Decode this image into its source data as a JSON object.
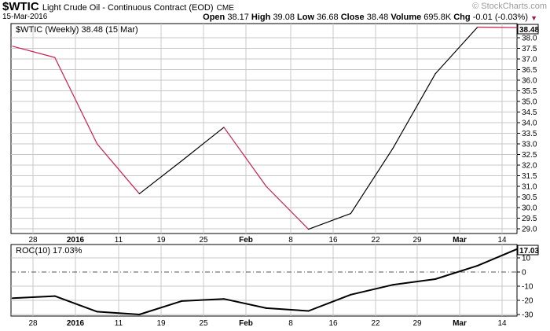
{
  "header": {
    "symbol": "$WTIC",
    "description": "Light Crude Oil - Continuous Contract (EOD)",
    "exchange": "CME",
    "date": "15-Mar-2016",
    "open_label": "Open",
    "open": "38.17",
    "high_label": "High",
    "high": "39.08",
    "low_label": "Low",
    "low": "36.68",
    "close_label": "Close",
    "close": "38.48",
    "volume_label": "Volume",
    "volume": "695.8K",
    "chg_label": "Chg",
    "chg": "-0.01 (-0.03%)",
    "brand": "© StockCharts.com"
  },
  "colors": {
    "up": "#000000",
    "down": "#cc1f4e",
    "grid": "#c8c8c8",
    "zero_line": "#555555"
  },
  "chart_data": [
    {
      "type": "line",
      "title": "$WTIC (Weekly) 38.48 (15 Mar)",
      "last_value_label": "38.48",
      "x_labels": [
        "28",
        "2016",
        "11",
        "19",
        "25",
        "Feb",
        "8",
        "16",
        "22",
        "29",
        "Mar",
        "14"
      ],
      "x_labels_bold": [
        "2016",
        "Feb",
        "Mar"
      ],
      "x": [
        "Dec 21",
        "Dec 28",
        "Jan 4",
        "Jan 11",
        "Jan 19",
        "Jan 25",
        "Feb 1",
        "Feb 8",
        "Feb 16",
        "Feb 22",
        "Feb 29",
        "Mar 7",
        "Mar 14"
      ],
      "values": [
        37.6,
        37.07,
        33.0,
        30.65,
        32.2,
        33.78,
        31.0,
        28.98,
        29.72,
        32.8,
        36.3,
        38.5,
        38.48
      ],
      "ylim": [
        28.7,
        38.5
      ],
      "y_ticks": [
        29.0,
        29.5,
        30.0,
        30.5,
        31.0,
        31.5,
        32.0,
        32.5,
        33.0,
        33.5,
        34.0,
        34.5,
        35.0,
        35.5,
        36.0,
        36.5,
        37.0,
        37.5,
        38.0
      ],
      "y_tick_labels": [
        "29.0",
        "29.5",
        "30.0",
        "30.5",
        "31.0",
        "31.5",
        "32.0",
        "32.5",
        "33.0",
        "33.5",
        "34.0",
        "34.5",
        "35.0",
        "35.5",
        "36.0",
        "36.5",
        "37.0",
        "37.5",
        "38.0"
      ],
      "grid": true
    },
    {
      "type": "line",
      "title": "ROC(10) 17.03%",
      "last_value_label": "17.03",
      "x_labels": [
        "28",
        "2016",
        "11",
        "19",
        "25",
        "Feb",
        "8",
        "16",
        "22",
        "29",
        "Mar",
        "14"
      ],
      "x_labels_bold": [
        "2016",
        "Feb",
        "Mar"
      ],
      "x": [
        "Dec 21",
        "Dec 28",
        "Jan 4",
        "Jan 11",
        "Jan 19",
        "Jan 25",
        "Feb 1",
        "Feb 8",
        "Feb 16",
        "Feb 22",
        "Feb 29",
        "Mar 7",
        "Mar 14"
      ],
      "values": [
        -18.5,
        -17.0,
        -28.0,
        -30.0,
        -20.5,
        -19.0,
        -25.5,
        -27.5,
        -16.0,
        -9.0,
        -5.0,
        4.5,
        17.03
      ],
      "ylim": [
        -35,
        20
      ],
      "y_ticks": [
        -30,
        -20,
        -10,
        0,
        10
      ],
      "y_tick_labels": [
        "-30",
        "-20",
        "-10",
        "0",
        "10"
      ],
      "zero_line": true,
      "grid": true
    }
  ]
}
